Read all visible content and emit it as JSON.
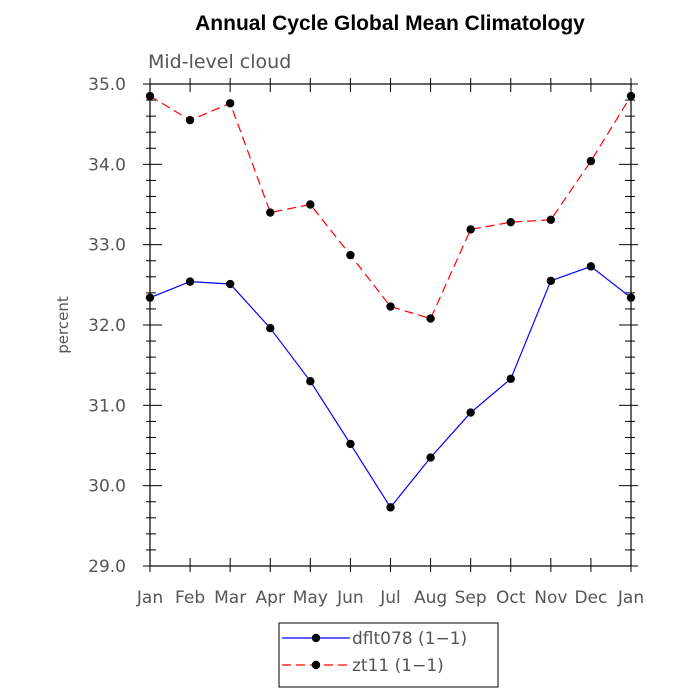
{
  "chart_data": {
    "type": "line",
    "title": "Annual Cycle Global Mean Climatology",
    "subtitle": "Mid-level cloud",
    "xlabel": "",
    "ylabel": "percent",
    "categories": [
      "Jan",
      "Feb",
      "Mar",
      "Apr",
      "May",
      "Jun",
      "Jul",
      "Aug",
      "Sep",
      "Oct",
      "Nov",
      "Dec",
      "Jan"
    ],
    "ylim": [
      29.0,
      35.0
    ],
    "yticks": [
      29.0,
      30.0,
      31.0,
      32.0,
      33.0,
      34.0,
      35.0
    ],
    "ytick_labels": [
      "29.0",
      "30.0",
      "31.0",
      "32.0",
      "33.0",
      "34.0",
      "35.0"
    ],
    "grid": false,
    "legend_position": "bottom-center",
    "series": [
      {
        "name": "dflt078 (1−1)",
        "color": "#0000ff",
        "style": "solid",
        "values": [
          32.34,
          32.54,
          32.51,
          31.96,
          31.3,
          30.52,
          29.73,
          30.35,
          30.91,
          31.33,
          32.55,
          32.73,
          32.34
        ]
      },
      {
        "name": "zt11 (1−1)",
        "color": "#ff0000",
        "style": "dashed",
        "values": [
          34.85,
          34.55,
          34.76,
          33.4,
          33.5,
          32.87,
          32.23,
          32.08,
          33.19,
          33.28,
          33.31,
          34.04,
          34.85
        ]
      }
    ]
  }
}
